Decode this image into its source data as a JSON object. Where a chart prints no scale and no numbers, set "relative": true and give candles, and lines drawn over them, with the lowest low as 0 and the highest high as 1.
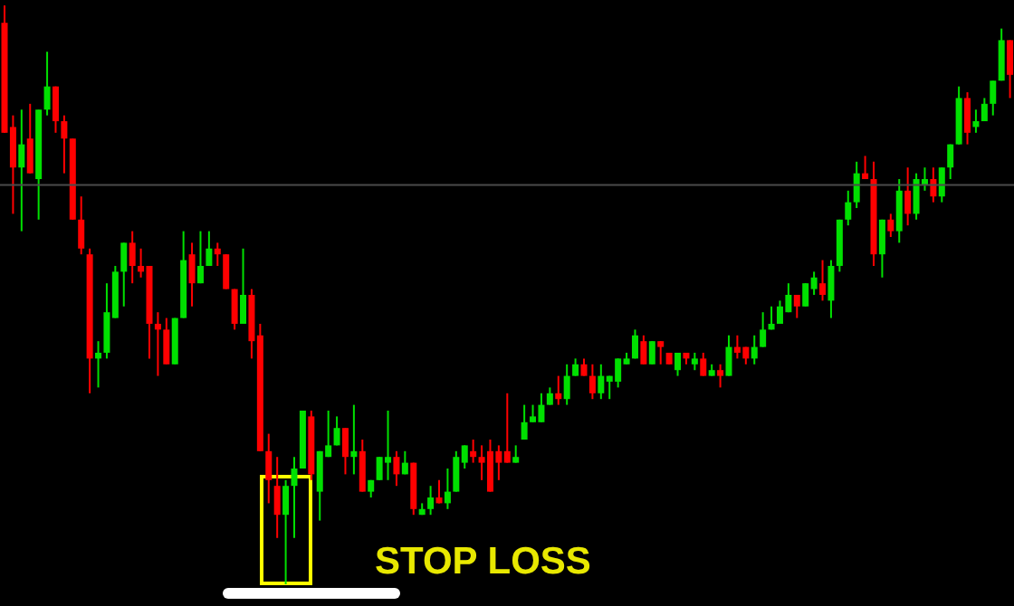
{
  "chart_data": {
    "type": "candlestick",
    "relative": true,
    "tick_labels": false,
    "colors": [
      "#ff0000",
      "#ff0000",
      "#00e000",
      "#ff0000",
      "#00e000",
      "#00e000",
      "#ff0000",
      "#ff0000",
      "#ff0000",
      "#ff0000",
      "#ff0000",
      "#00e000",
      "#00e000",
      "#00e000",
      "#00e000",
      "#ff0000",
      "#ff0000",
      "#ff0000",
      "#ff0000",
      "#ff0000",
      "#00e000",
      "#00e000",
      "#ff0000",
      "#00e000",
      "#00e000",
      "#ff0000",
      "#ff0000",
      "#ff0000",
      "#00e000",
      "#ff0000",
      "#ff0000",
      "#ff0000",
      "#ff0000",
      "#00e000",
      "#00e000",
      "#00e000",
      "#ff0000",
      "#00e000",
      "#00e000",
      "#00e000",
      "#ff0000",
      "#00e000",
      "#ff0000",
      "#00e000",
      "#00e000",
      "#00e000",
      "#ff0000",
      "#00e000",
      "#ff0000",
      "#00e000",
      "#00e000",
      "#ff0000",
      "#00e000",
      "#00e000",
      "#00e000",
      "#ff0000",
      "#ff0000",
      "#ff0000",
      "#ff0000",
      "#ff0000",
      "#00e000",
      "#00e000",
      "#00e000",
      "#00e000",
      "#00e000",
      "#ff0000",
      "#00e000",
      "#00e000",
      "#ff0000",
      "#ff0000",
      "#00e000",
      "#00e000",
      "#00e000",
      "#00e000",
      "#00e000",
      "#ff0000",
      "#00e000",
      "#ff0000",
      "#ff0000",
      "#00e000",
      "#ff0000",
      "#00e000",
      "#ff0000",
      "#00e000",
      "#ff0000",
      "#00e000",
      "#ff0000",
      "#ff0000",
      "#00e000",
      "#00e000",
      "#00e000",
      "#00e000",
      "#00e000",
      "#ff0000",
      "#00e000",
      "#00e000",
      "#ff0000",
      "#00e000",
      "#00e000",
      "#00e000",
      "#00e000",
      "#ff0000",
      "#ff0000",
      "#00e000",
      "#ff0000",
      "#00e000",
      "#ff0000",
      "#00e000",
      "#00e000",
      "#ff0000",
      "#00e000",
      "#00e000",
      "#00e000",
      "#ff0000",
      "#00e000",
      "#00e000",
      "#00e000",
      "#00e000",
      "#ff0000"
    ],
    "categories": [
      null,
      null,
      null,
      null,
      null,
      null,
      null,
      null,
      null,
      null,
      null,
      null,
      null,
      null,
      null,
      null,
      null,
      null,
      null,
      null,
      null,
      null,
      null,
      null,
      null,
      null,
      null,
      null,
      null,
      null,
      null,
      null,
      null,
      null,
      null,
      null,
      null,
      null,
      null,
      null,
      null,
      null,
      null,
      null,
      null,
      null,
      null,
      null,
      null,
      null,
      null,
      null,
      null,
      null,
      null,
      null,
      null,
      null,
      null,
      null,
      null,
      null,
      null,
      null,
      null,
      null,
      null,
      null,
      null,
      null,
      null,
      null,
      null,
      null,
      null,
      null,
      null,
      null,
      null,
      null,
      null,
      null,
      null,
      null,
      null,
      null,
      null,
      null,
      null,
      null,
      null,
      null,
      null,
      null,
      null,
      null,
      null,
      null,
      null,
      null,
      null,
      null,
      null,
      null,
      null,
      null,
      null,
      null,
      null,
      null,
      null,
      null,
      null,
      null,
      null,
      null,
      null,
      null,
      null
    ],
    "ohlc": [
      [
        0.97,
        1,
        0.78,
        0.78
      ],
      [
        0.79,
        0.81,
        0.64,
        0.72
      ],
      [
        0.72,
        0.82,
        0.61,
        0.76
      ],
      [
        0.77,
        0.83,
        0.71,
        0.71
      ],
      [
        0.7,
        0.82,
        0.63,
        0.82
      ],
      [
        0.82,
        0.92,
        0.81,
        0.86
      ],
      [
        0.86,
        0.86,
        0.78,
        0.8
      ],
      [
        0.8,
        0.81,
        0.71,
        0.77
      ],
      [
        0.77,
        0.77,
        0.63,
        0.63
      ],
      [
        0.63,
        0.67,
        0.57,
        0.58
      ],
      [
        0.57,
        0.58,
        0.33,
        0.39
      ],
      [
        0.39,
        0.42,
        0.34,
        0.4
      ],
      [
        0.4,
        0.52,
        0.39,
        0.47
      ],
      [
        0.46,
        0.55,
        0.46,
        0.54
      ],
      [
        0.54,
        0.59,
        0.48,
        0.59
      ],
      [
        0.59,
        0.61,
        0.52,
        0.55
      ],
      [
        0.55,
        0.58,
        0.53,
        0.54
      ],
      [
        0.55,
        0.55,
        0.39,
        0.45
      ],
      [
        0.45,
        0.47,
        0.36,
        0.44
      ],
      [
        0.44,
        0.46,
        0.38,
        0.38
      ],
      [
        0.38,
        0.46,
        0.38,
        0.46
      ],
      [
        0.46,
        0.61,
        0.46,
        0.56
      ],
      [
        0.57,
        0.59,
        0.48,
        0.52
      ],
      [
        0.52,
        0.61,
        0.52,
        0.55
      ],
      [
        0.55,
        0.61,
        0.55,
        0.58
      ],
      [
        0.58,
        0.59,
        0.55,
        0.57
      ],
      [
        0.57,
        0.57,
        0.51,
        0.51
      ],
      [
        0.51,
        0.51,
        0.44,
        0.45
      ],
      [
        0.45,
        0.58,
        0.45,
        0.5
      ],
      [
        0.5,
        0.51,
        0.39,
        0.42
      ],
      [
        0.43,
        0.45,
        0.23,
        0.23
      ],
      [
        0.23,
        0.26,
        0.14,
        0.18
      ],
      [
        0.17,
        0.22,
        0.08,
        0.12
      ],
      [
        0.12,
        0.18,
        0,
        0.17
      ],
      [
        0.17,
        0.22,
        0.08,
        0.2
      ],
      [
        0.2,
        0.3,
        0.2,
        0.3
      ],
      [
        0.29,
        0.3,
        0.18,
        0.19
      ],
      [
        0.16,
        0.23,
        0.11,
        0.23
      ],
      [
        0.22,
        0.3,
        0.22,
        0.24
      ],
      [
        0.24,
        0.29,
        0.24,
        0.27
      ],
      [
        0.27,
        0.27,
        0.19,
        0.22
      ],
      [
        0.22,
        0.31,
        0.19,
        0.23
      ],
      [
        0.23,
        0.25,
        0.16,
        0.16
      ],
      [
        0.16,
        0.18,
        0.15,
        0.18
      ],
      [
        0.18,
        0.22,
        0.18,
        0.22
      ],
      [
        0.21,
        0.3,
        0.18,
        0.22
      ],
      [
        0.22,
        0.23,
        0.17,
        0.19
      ],
      [
        0.19,
        0.23,
        0.19,
        0.21
      ],
      [
        0.21,
        0.21,
        0.12,
        0.13
      ],
      [
        0.12,
        0.14,
        0.12,
        0.13
      ],
      [
        0.13,
        0.17,
        0.12,
        0.15
      ],
      [
        0.15,
        0.18,
        0.14,
        0.14
      ],
      [
        0.14,
        0.2,
        0.13,
        0.16
      ],
      [
        0.16,
        0.23,
        0.16,
        0.22
      ],
      [
        0.21,
        0.24,
        0.2,
        0.24
      ],
      [
        0.23,
        0.25,
        0.21,
        0.22
      ],
      [
        0.22,
        0.24,
        0.18,
        0.21
      ],
      [
        0.23,
        0.25,
        0.16,
        0.16
      ],
      [
        0.23,
        0.24,
        0.18,
        0.21
      ],
      [
        0.23,
        0.33,
        0.21,
        0.21
      ],
      [
        0.21,
        0.24,
        0.21,
        0.22
      ],
      [
        0.25,
        0.31,
        0.25,
        0.28
      ],
      [
        0.28,
        0.31,
        0.28,
        0.29
      ],
      [
        0.28,
        0.33,
        0.28,
        0.31
      ],
      [
        0.31,
        0.34,
        0.31,
        0.33
      ],
      [
        0.33,
        0.36,
        0.31,
        0.32
      ],
      [
        0.32,
        0.38,
        0.31,
        0.36
      ],
      [
        0.36,
        0.39,
        0.36,
        0.38
      ],
      [
        0.38,
        0.39,
        0.36,
        0.36
      ],
      [
        0.36,
        0.38,
        0.32,
        0.33
      ],
      [
        0.33,
        0.38,
        0.32,
        0.36
      ],
      [
        0.35,
        0.36,
        0.32,
        0.36
      ],
      [
        0.35,
        0.39,
        0.34,
        0.39
      ],
      [
        0.38,
        0.4,
        0.38,
        0.39
      ],
      [
        0.39,
        0.44,
        0.39,
        0.43
      ],
      [
        0.42,
        0.43,
        0.38,
        0.38
      ],
      [
        0.38,
        0.42,
        0.38,
        0.42
      ],
      [
        0.42,
        0.42,
        0.38,
        0.41
      ],
      [
        0.4,
        0.4,
        0.38,
        0.38
      ],
      [
        0.37,
        0.4,
        0.36,
        0.4
      ],
      [
        0.4,
        0.4,
        0.38,
        0.39
      ],
      [
        0.38,
        0.4,
        0.37,
        0.39
      ],
      [
        0.39,
        0.4,
        0.36,
        0.36
      ],
      [
        0.36,
        0.38,
        0.36,
        0.37
      ],
      [
        0.37,
        0.38,
        0.34,
        0.36
      ],
      [
        0.36,
        0.43,
        0.36,
        0.41
      ],
      [
        0.41,
        0.43,
        0.39,
        0.4
      ],
      [
        0.41,
        0.41,
        0.38,
        0.39
      ],
      [
        0.39,
        0.43,
        0.38,
        0.41
      ],
      [
        0.41,
        0.47,
        0.41,
        0.44
      ],
      [
        0.44,
        0.48,
        0.44,
        0.45
      ],
      [
        0.45,
        0.49,
        0.45,
        0.48
      ],
      [
        0.47,
        0.52,
        0.47,
        0.5
      ],
      [
        0.5,
        0.5,
        0.46,
        0.48
      ],
      [
        0.48,
        0.52,
        0.48,
        0.52
      ],
      [
        0.51,
        0.54,
        0.5,
        0.53
      ],
      [
        0.52,
        0.56,
        0.49,
        0.5
      ],
      [
        0.49,
        0.56,
        0.46,
        0.55
      ],
      [
        0.55,
        0.63,
        0.54,
        0.63
      ],
      [
        0.63,
        0.68,
        0.62,
        0.66
      ],
      [
        0.66,
        0.73,
        0.65,
        0.71
      ],
      [
        0.71,
        0.74,
        0.7,
        0.7
      ],
      [
        0.7,
        0.73,
        0.55,
        0.57
      ],
      [
        0.57,
        0.63,
        0.53,
        0.63
      ],
      [
        0.63,
        0.64,
        0.6,
        0.61
      ],
      [
        0.61,
        0.7,
        0.59,
        0.68
      ],
      [
        0.68,
        0.72,
        0.62,
        0.64
      ],
      [
        0.64,
        0.71,
        0.63,
        0.7
      ],
      [
        0.69,
        0.72,
        0.68,
        0.7
      ],
      [
        0.7,
        0.72,
        0.66,
        0.67
      ],
      [
        0.67,
        0.72,
        0.66,
        0.72
      ],
      [
        0.72,
        0.76,
        0.7,
        0.76
      ],
      [
        0.76,
        0.86,
        0.76,
        0.84
      ],
      [
        0.84,
        0.85,
        0.76,
        0.78
      ],
      [
        0.79,
        0.82,
        0.78,
        0.8
      ],
      [
        0.8,
        0.84,
        0.8,
        0.83
      ],
      [
        0.83,
        0.87,
        0.81,
        0.87
      ],
      [
        0.87,
        0.96,
        0.87,
        0.94
      ],
      [
        0.94,
        0.94,
        0.84,
        0.88
      ]
    ],
    "ref_lines": [
      {
        "axis": "y",
        "value": 0.69,
        "color": "#4a4a4a"
      }
    ],
    "annotations": [
      "STOP LOSS"
    ]
  }
}
